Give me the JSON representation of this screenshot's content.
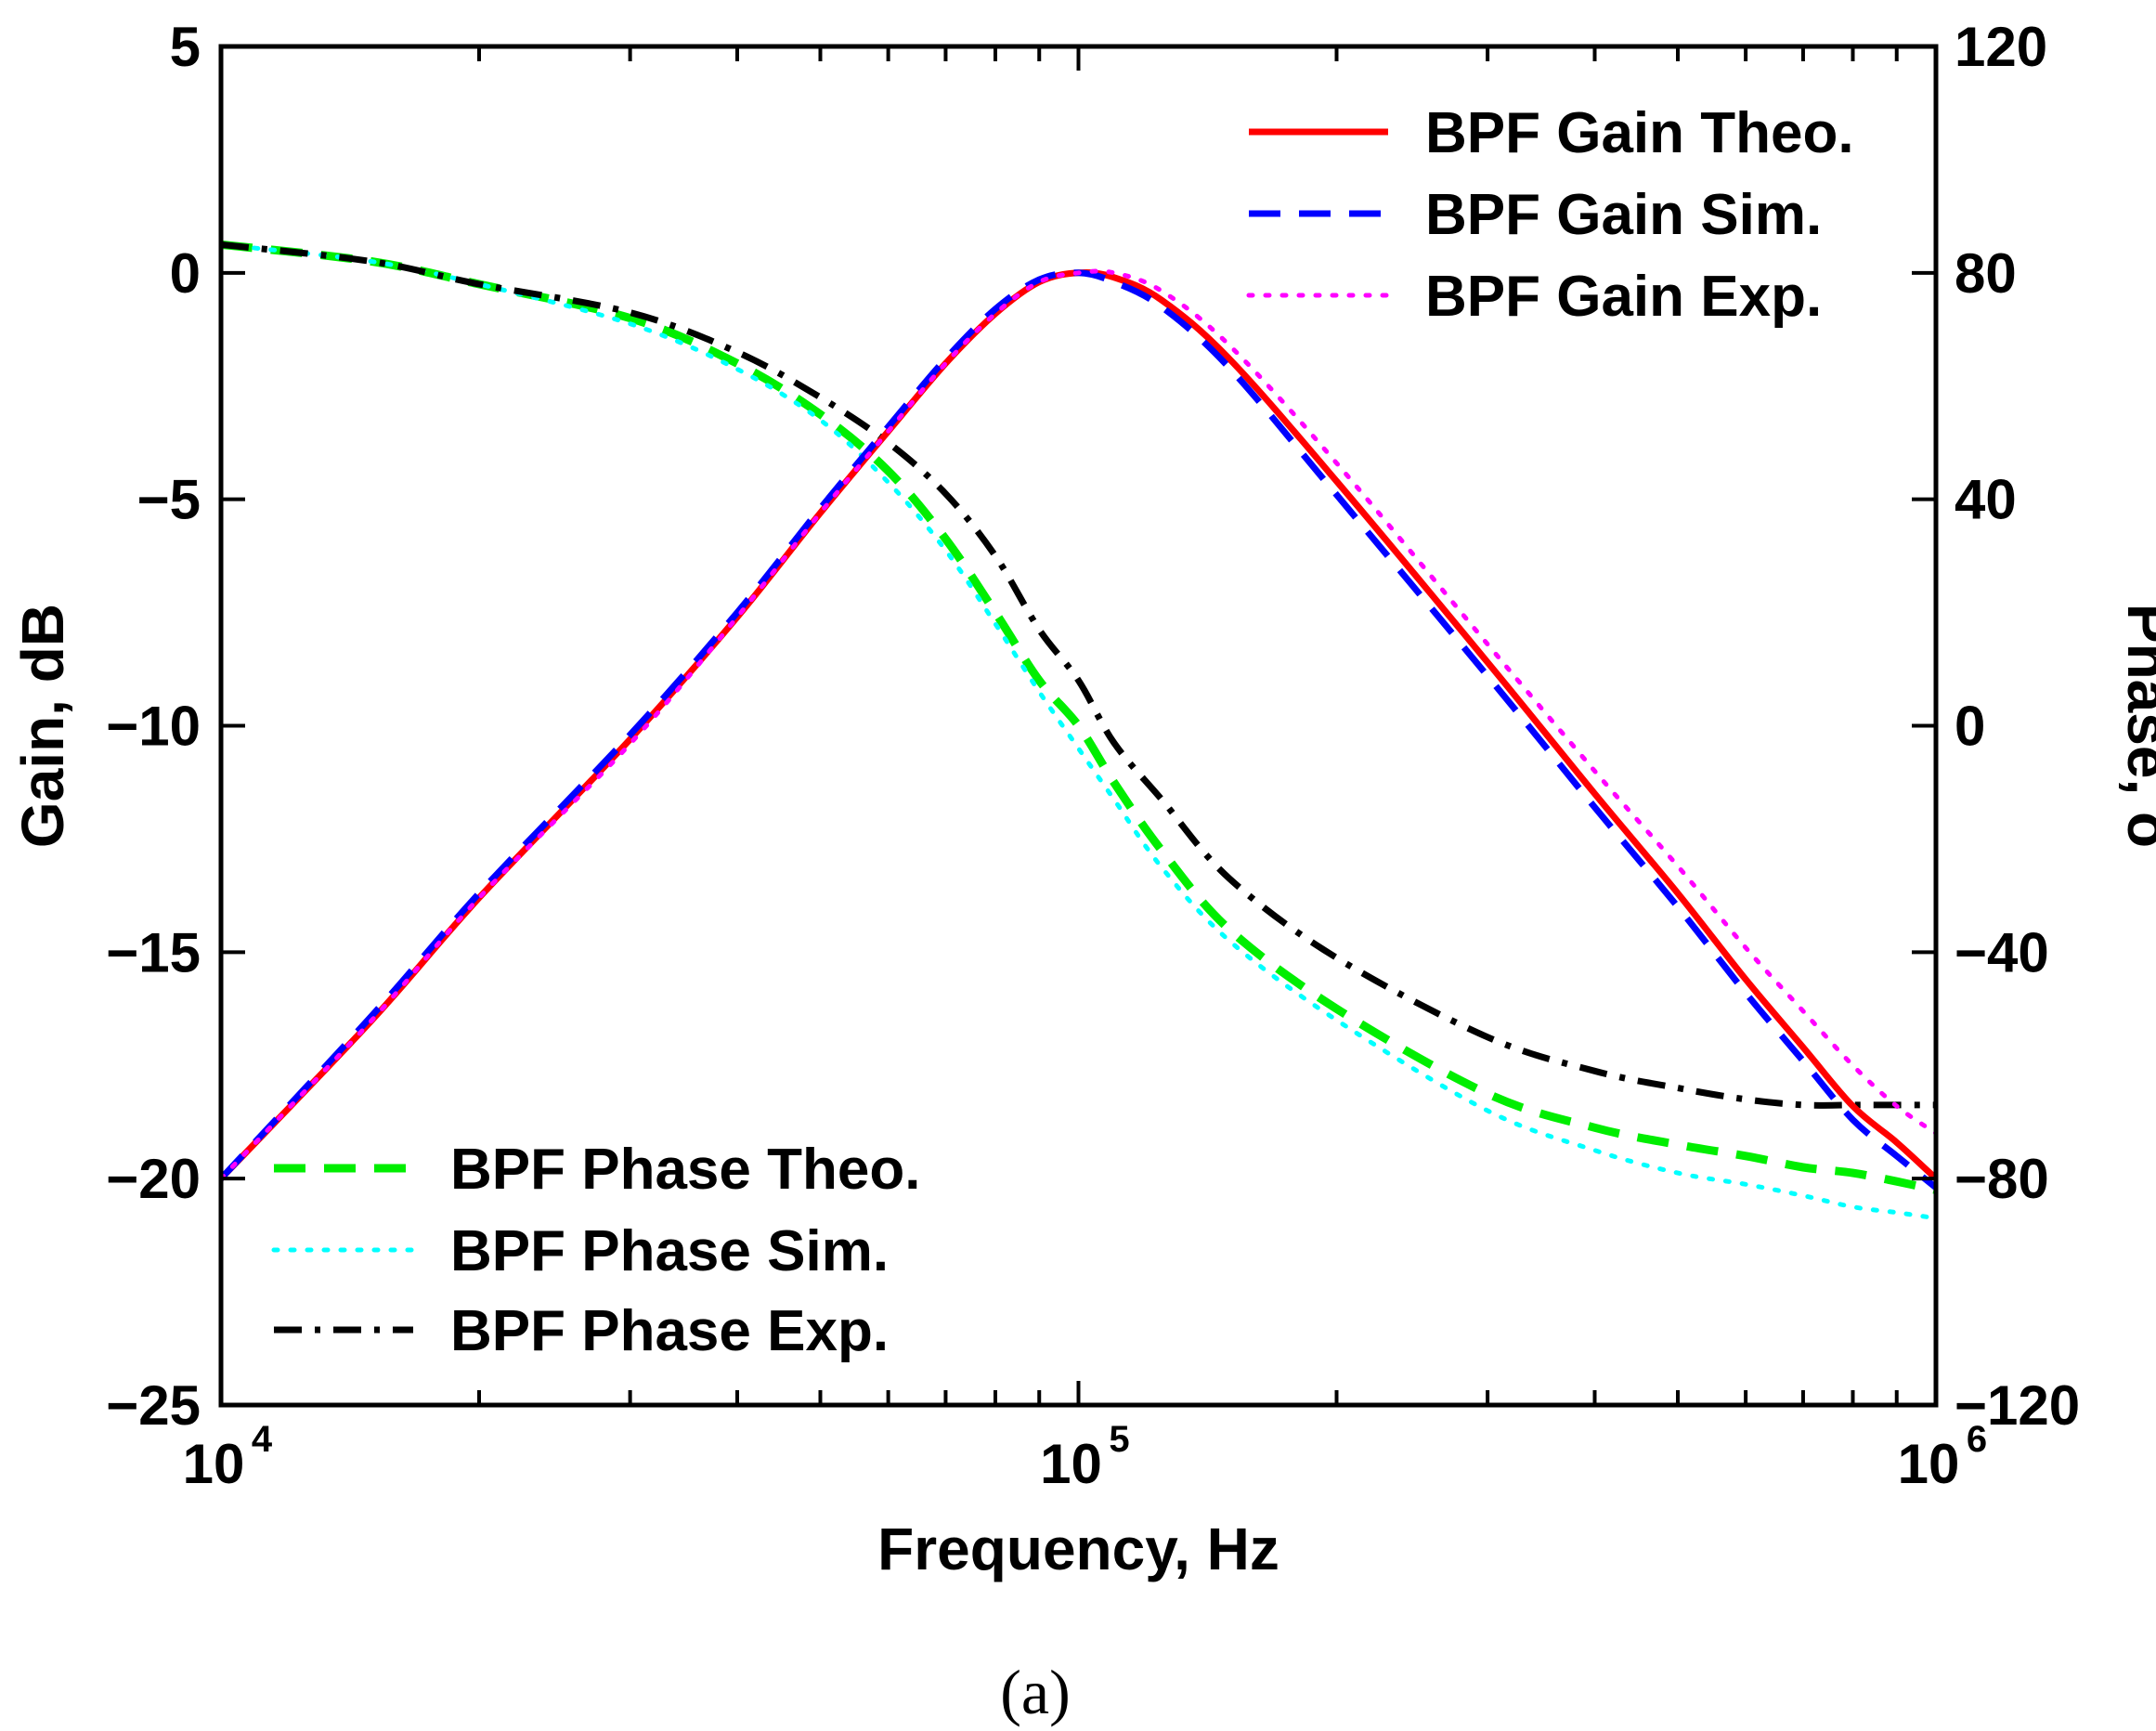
{
  "chart_data": {
    "type": "line",
    "xlabel": "Frequency, Hz",
    "ylabel_left": "Gain, dB",
    "ylabel_right": "Phase, o",
    "panel_label": "(a)",
    "x_scale": "log",
    "xlim": [
      10000,
      1000000
    ],
    "ylim_left": [
      -25,
      5
    ],
    "ylim_right": [
      -120,
      120
    ],
    "grid": false,
    "x_ticks": [
      {
        "value": 10000,
        "base": "10",
        "exp": "4"
      },
      {
        "value": 100000,
        "base": "10",
        "exp": "5"
      },
      {
        "value": 1000000,
        "base": "10",
        "exp": "6"
      }
    ],
    "y_ticks_left": [
      "5",
      "0",
      "−5",
      "−10",
      "−15",
      "−20",
      "−25"
    ],
    "y_ticks_left_values": [
      5,
      0,
      -5,
      -10,
      -15,
      -20,
      -25
    ],
    "y_ticks_right": [
      "120",
      "80",
      "40",
      "0",
      "−40",
      "−80",
      "−120"
    ],
    "y_ticks_right_values": [
      120,
      80,
      40,
      0,
      -40,
      -80,
      -120
    ],
    "legend_top_right": [
      "BPF Gain Theo.",
      "BPF Gain Sim.",
      "BPF Gain Exp."
    ],
    "legend_bottom_left": [
      "BPF Phase Theo.",
      "BPF Phase Sim.",
      "BPF Phase Exp."
    ],
    "x": [
      10000,
      15000,
      20000,
      30000,
      40000,
      50000,
      60000,
      70000,
      80000,
      90000,
      100000,
      110000,
      125000,
      150000,
      200000,
      300000,
      400000,
      500000,
      600000,
      700000,
      800000,
      900000,
      1000000
    ],
    "series": [
      {
        "name": "BPF Gain Theo.",
        "axis": "left",
        "color": "#ff0000",
        "style": "solid",
        "values": [
          -20,
          -16.5,
          -13.8,
          -10.3,
          -7.6,
          -5.3,
          -3.5,
          -2.0,
          -0.9,
          -0.2,
          0,
          -0.1,
          -0.6,
          -1.9,
          -4.6,
          -8.6,
          -11.5,
          -13.7,
          -15.6,
          -17.1,
          -18.4,
          -19.2,
          -20
        ]
      },
      {
        "name": "BPF Gain Sim.",
        "axis": "left",
        "color": "#0000ff",
        "style": "dashed",
        "values": [
          -20,
          -16.4,
          -13.7,
          -10.2,
          -7.5,
          -5.2,
          -3.4,
          -1.9,
          -0.8,
          -0.15,
          0,
          -0.2,
          -0.75,
          -2.1,
          -4.9,
          -8.9,
          -11.8,
          -14.0,
          -15.9,
          -17.4,
          -18.7,
          -19.5,
          -20.2
        ]
      },
      {
        "name": "BPF Gain Exp.",
        "axis": "left",
        "color": "#ff00ff",
        "style": "dotted",
        "values": [
          -20,
          -16.5,
          -13.8,
          -10.4,
          -7.6,
          -5.3,
          -3.5,
          -2.0,
          -0.9,
          -0.2,
          0,
          0,
          -0.4,
          -1.6,
          -4.2,
          -8.2,
          -11.0,
          -13.1,
          -14.9,
          -16.3,
          -17.5,
          -18.4,
          -19.0
        ]
      },
      {
        "name": "BPF Phase Theo.",
        "axis": "right",
        "color": "#00ee00",
        "style": "dashed",
        "values": [
          85,
          82,
          78,
          72,
          64,
          55,
          45,
          33,
          20,
          8,
          0,
          -10,
          -22,
          -36,
          -50,
          -65,
          -71,
          -74,
          -76,
          -78,
          -79,
          -80.5,
          -82
        ]
      },
      {
        "name": "BPF Phase Sim.",
        "axis": "right",
        "color": "#00ffff",
        "style": "dotted",
        "values": [
          85,
          82,
          78,
          71,
          63,
          54,
          43,
          31,
          18,
          6,
          -4,
          -13,
          -25,
          -38,
          -52,
          -68,
          -75,
          -79,
          -81,
          -83,
          -85,
          -86,
          -87
        ]
      },
      {
        "name": "BPF Phase Exp.",
        "axis": "right",
        "color": "#000000",
        "style": "dashdot",
        "values": [
          85,
          82,
          78,
          73,
          66,
          58,
          50,
          41,
          30,
          17,
          8,
          -3,
          -13,
          -27,
          -41,
          -55,
          -61,
          -64,
          -66,
          -67,
          -67,
          -67,
          -67
        ]
      }
    ]
  }
}
